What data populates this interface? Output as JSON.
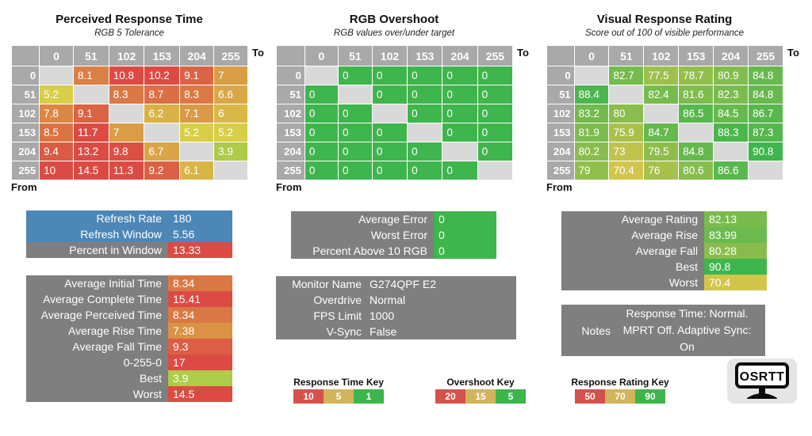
{
  "colors": {
    "header_gray": "#A9A9A9",
    "diag_gray": "#D9D9D9",
    "panel_gray": "#7F7F7F",
    "blue": "#4C87B8",
    "green": "#3FB54D",
    "yellow": "#D8D348",
    "red": "#DB4B44",
    "key_red": "#D4524C",
    "key_tan": "#D2B45A",
    "key_green": "#3CB54A",
    "logo_bg": "#E5E5E5"
  },
  "scales": {
    "time": [
      [
        1,
        "#3FB54D"
      ],
      [
        5,
        "#D8D348"
      ],
      [
        10,
        "#DB4B44"
      ]
    ],
    "overshoot": [
      [
        5,
        "#3FB54D"
      ],
      [
        15,
        "#D2B45A"
      ],
      [
        20,
        "#DB4B44"
      ]
    ],
    "rating": [
      [
        50,
        "#DB4B44"
      ],
      [
        70,
        "#D5C54C"
      ],
      [
        90,
        "#3FB54D"
      ]
    ]
  },
  "chart_data": [
    {
      "type": "heatmap",
      "title": "Perceived Response Time",
      "subtitle": "RGB 5 Tolerance",
      "corner_label": "To",
      "origin_label": "From",
      "scale": "time",
      "categories": [
        "0",
        "51",
        "102",
        "153",
        "204",
        "255"
      ],
      "row_labels": [
        "0",
        "51",
        "102",
        "153",
        "204",
        "255"
      ],
      "rows": [
        [
          null,
          8.1,
          10.8,
          10.2,
          9.1,
          7
        ],
        [
          5.2,
          null,
          8.3,
          8.7,
          8.3,
          6.6
        ],
        [
          7.8,
          9.1,
          null,
          6.2,
          7.1,
          6
        ],
        [
          8.5,
          11.7,
          7,
          null,
          5.2,
          5.2
        ],
        [
          9.4,
          13.2,
          9.8,
          6.7,
          null,
          3.9
        ],
        [
          10,
          14.5,
          11.3,
          9.2,
          6.1,
          null
        ]
      ]
    },
    {
      "type": "heatmap",
      "title": "RGB Overshoot",
      "subtitle": "RGB values over/under target",
      "corner_label": "To",
      "origin_label": "From",
      "scale": "overshoot",
      "categories": [
        "0",
        "51",
        "102",
        "153",
        "204",
        "255"
      ],
      "row_labels": [
        "0",
        "51",
        "102",
        "153",
        "204",
        "255"
      ],
      "rows": [
        [
          null,
          0,
          0,
          0,
          0,
          0
        ],
        [
          0,
          null,
          0,
          0,
          0,
          0
        ],
        [
          0,
          0,
          null,
          0,
          0,
          0
        ],
        [
          0,
          0,
          0,
          null,
          0,
          0
        ],
        [
          0,
          0,
          0,
          0,
          null,
          0
        ],
        [
          0,
          0,
          0,
          0,
          0,
          null
        ]
      ]
    },
    {
      "type": "heatmap",
      "title": "Visual Response Rating",
      "subtitle": "Score out of 100 of visible performance",
      "corner_label": "To",
      "origin_label": "From",
      "scale": "rating",
      "categories": [
        "0",
        "51",
        "102",
        "153",
        "204",
        "255"
      ],
      "row_labels": [
        "0",
        "51",
        "102",
        "153",
        "204",
        "255"
      ],
      "rows": [
        [
          null,
          82.7,
          77.5,
          78.7,
          80.9,
          84.8
        ],
        [
          88.4,
          null,
          82.4,
          81.6,
          82.3,
          84.8
        ],
        [
          83.2,
          80,
          null,
          86.5,
          84.5,
          86.7
        ],
        [
          81.9,
          75.9,
          84.7,
          null,
          88.3,
          87.3
        ],
        [
          80.2,
          73,
          79.5,
          84.8,
          null,
          90.8
        ],
        [
          79,
          70.4,
          76,
          80.6,
          86.6,
          null
        ]
      ]
    }
  ],
  "panels": {
    "refresh": {
      "value_width": 75,
      "rows": [
        {
          "label": "Refresh Rate",
          "value": "180",
          "style": "blue"
        },
        {
          "label": "Refresh Window",
          "value": "5.56",
          "style": "blue"
        },
        {
          "label": "Percent in Window",
          "value": "13.33",
          "style": "time"
        }
      ]
    },
    "time_stats": {
      "value_width": 75,
      "rows": [
        {
          "label": "Average Initial Time",
          "value": "8.34",
          "style": "time"
        },
        {
          "label": "Average Complete Time",
          "value": "15.41",
          "style": "time"
        },
        {
          "label": "Average Perceived Time",
          "value": "8.34",
          "style": "time"
        },
        {
          "label": "Average Rise Time",
          "value": "7.38",
          "style": "time"
        },
        {
          "label": "Average Fall Time",
          "value": "9.3",
          "style": "time"
        },
        {
          "label": "0-255-0",
          "value": "17",
          "style": "time"
        },
        {
          "label": "Best",
          "value": "3.9",
          "style": "time"
        },
        {
          "label": "Worst",
          "value": "14.5",
          "style": "time"
        }
      ]
    },
    "error_stats": {
      "value_width": 73,
      "rows": [
        {
          "label": "Average Error",
          "value": "0",
          "style": "overshoot"
        },
        {
          "label": "Worst Error",
          "value": "0",
          "style": "overshoot"
        },
        {
          "label": "Percent Above 10 RGB",
          "value": "0",
          "style": "overshoot"
        }
      ]
    },
    "monitor_info": {
      "label_width": 108,
      "rows": [
        {
          "label": "Monitor Name",
          "value": "G274QPF E2",
          "style": "plain"
        },
        {
          "label": "Overdrive",
          "value": "Normal",
          "style": "plain"
        },
        {
          "label": "FPS Limit",
          "value": "1000",
          "style": "plain"
        },
        {
          "label": "V-Sync",
          "value": "False",
          "style": "plain"
        }
      ]
    },
    "rating_stats": {
      "value_width": 73,
      "rows": [
        {
          "label": "Average Rating",
          "value": "82.13",
          "style": "rating"
        },
        {
          "label": "Average Rise",
          "value": "83.99",
          "style": "rating"
        },
        {
          "label": "Average Fall",
          "value": "80.28",
          "style": "rating"
        },
        {
          "label": "Best",
          "value": "90.8",
          "style": "rating"
        },
        {
          "label": "Worst",
          "value": "70.4",
          "style": "rating"
        }
      ]
    },
    "notes": {
      "label": "Notes",
      "text": "Response Time: Normal. MPRT Off. Adaptive Sync: On"
    }
  },
  "keys": [
    {
      "title": "Response Time Key",
      "cells": [
        {
          "label": "10",
          "color": "#D4524C"
        },
        {
          "label": "5",
          "color": "#D2B45A"
        },
        {
          "label": "1",
          "color": "#3CB54A"
        }
      ]
    },
    {
      "title": "Overshoot Key",
      "cells": [
        {
          "label": "20",
          "color": "#D4524C"
        },
        {
          "label": "15",
          "color": "#D2B45A"
        },
        {
          "label": "5",
          "color": "#3CB54A"
        }
      ]
    },
    {
      "title": "Response Rating Key",
      "cells": [
        {
          "label": "50",
          "color": "#D4524C"
        },
        {
          "label": "70",
          "color": "#D2B45A"
        },
        {
          "label": "90",
          "color": "#3CB54A"
        }
      ]
    }
  ],
  "logo": {
    "text": "OSRTT"
  }
}
